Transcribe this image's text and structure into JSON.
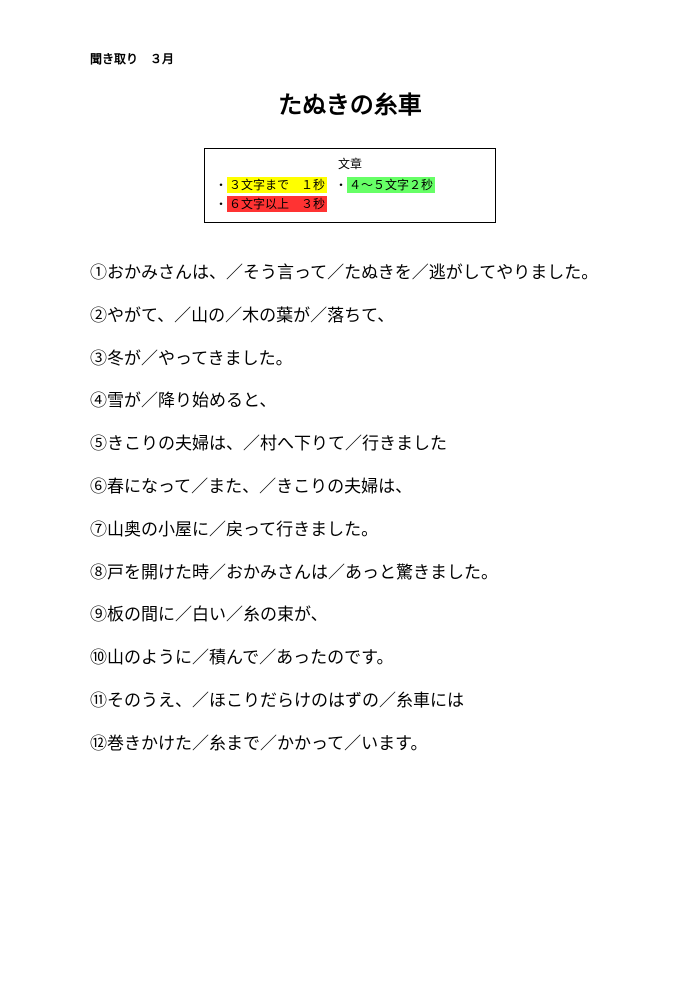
{
  "header": "聞き取り　３月",
  "title": "たぬきの糸車",
  "legend": {
    "caption": "文章",
    "items": [
      {
        "bullet": "・",
        "text": "３文字まで　１秒",
        "color": "yellow"
      },
      {
        "bullet": "・",
        "text": "４～５文字２秒",
        "color": "green"
      },
      {
        "bullet": "・",
        "text": "６文字以上　３秒",
        "color": "red"
      }
    ]
  },
  "circled": [
    "①",
    "②",
    "③",
    "④",
    "⑤",
    "⑥",
    "⑦",
    "⑧",
    "⑨",
    "⑩",
    "⑪",
    "⑫"
  ],
  "lines": [
    "おかみさんは、／そう言って／たぬきを／逃がしてやりました。",
    "やがて、／山の／木の葉が／落ちて、",
    "冬が／やってきました。",
    "雪が／降り始めると、",
    "きこりの夫婦は、／村へ下りて／行きました",
    "春になって／また、／きこりの夫婦は、",
    "山奥の小屋に／戻って行きました。",
    "戸を開けた時／おかみさんは／あっと驚きました。",
    "板の間に／白い／糸の束が、",
    "山のように／積んで／あったのです。",
    "そのうえ、／ほこりだらけのはずの／糸車には",
    "巻きかけた／糸まで／かかって／います。"
  ],
  "colors": {
    "yellow": "#ffff00",
    "green": "#66ff66",
    "red": "#ff3333",
    "text": "#000000",
    "background": "#ffffff",
    "border": "#000000"
  },
  "typography": {
    "body_font": "Hiragino Mincho ProN",
    "legend_font": "Hiragino Kaku Gothic ProN",
    "title_fontsize": 24,
    "body_fontsize": 17,
    "header_fontsize": 12,
    "legend_fontsize": 12,
    "line_height": 2.4
  }
}
